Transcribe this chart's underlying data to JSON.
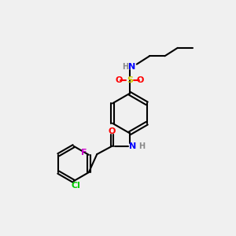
{
  "background_color": "#f0f0f0",
  "bond_color": "#000000",
  "bond_width": 1.5,
  "atom_colors": {
    "N": "#0000ff",
    "O": "#ff0000",
    "S": "#cccc00",
    "Cl": "#00cc00",
    "F": "#cc00cc",
    "H": "#888888",
    "C": "#000000"
  },
  "font_size": 7,
  "figsize": [
    3.0,
    3.0
  ],
  "dpi": 100
}
